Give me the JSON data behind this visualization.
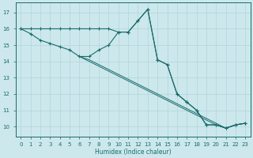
{
  "xlabel": "Humidex (Indice chaleur)",
  "xlim": [
    -0.5,
    23.5
  ],
  "ylim": [
    9.4,
    17.6
  ],
  "xticks": [
    0,
    1,
    2,
    3,
    4,
    5,
    6,
    7,
    8,
    9,
    10,
    11,
    12,
    13,
    14,
    15,
    16,
    17,
    18,
    19,
    20,
    21,
    22,
    23
  ],
  "yticks": [
    10,
    11,
    12,
    13,
    14,
    15,
    16,
    17
  ],
  "bg_color": "#cce8ec",
  "grid_color": "#b0d4d8",
  "line_color": "#1a6b6b",
  "line_flat": [
    [
      0,
      16.0
    ],
    [
      1,
      16.0
    ],
    [
      2,
      16.0
    ],
    [
      3,
      16.0
    ],
    [
      4,
      16.0
    ],
    [
      5,
      16.0
    ],
    [
      6,
      16.0
    ],
    [
      7,
      16.0
    ],
    [
      8,
      16.0
    ],
    [
      9,
      16.0
    ],
    [
      10,
      15.8
    ],
    [
      11,
      15.8
    ],
    [
      12,
      16.5
    ],
    [
      13,
      17.2
    ],
    [
      14,
      14.1
    ],
    [
      15,
      13.8
    ],
    [
      16,
      12.0
    ],
    [
      17,
      11.5
    ],
    [
      18,
      11.0
    ],
    [
      19,
      10.1
    ],
    [
      20,
      10.1
    ],
    [
      21,
      9.9
    ],
    [
      22,
      10.1
    ],
    [
      23,
      10.2
    ]
  ],
  "line_wavy": [
    [
      0,
      16.0
    ],
    [
      1,
      15.7
    ],
    [
      2,
      15.3
    ],
    [
      3,
      15.1
    ],
    [
      4,
      14.9
    ],
    [
      5,
      14.7
    ],
    [
      6,
      14.3
    ],
    [
      7,
      14.3
    ],
    [
      8,
      14.7
    ],
    [
      9,
      15.0
    ],
    [
      10,
      15.8
    ],
    [
      11,
      15.8
    ],
    [
      12,
      16.5
    ],
    [
      13,
      17.2
    ],
    [
      14,
      14.1
    ],
    [
      15,
      13.8
    ],
    [
      16,
      12.0
    ],
    [
      17,
      11.5
    ],
    [
      18,
      11.0
    ],
    [
      19,
      10.1
    ],
    [
      20,
      10.1
    ],
    [
      21,
      9.9
    ],
    [
      22,
      10.1
    ],
    [
      23,
      10.2
    ]
  ],
  "line_diag1": [
    [
      6,
      14.3
    ],
    [
      7,
      14.1
    ],
    [
      8,
      13.8
    ],
    [
      9,
      13.5
    ],
    [
      10,
      13.2
    ],
    [
      11,
      12.9
    ],
    [
      12,
      12.6
    ],
    [
      13,
      12.3
    ],
    [
      14,
      12.0
    ],
    [
      15,
      11.7
    ],
    [
      16,
      11.4
    ],
    [
      17,
      11.1
    ],
    [
      18,
      10.8
    ],
    [
      19,
      10.5
    ],
    [
      20,
      10.2
    ],
    [
      21,
      9.9
    ],
    [
      22,
      10.1
    ],
    [
      23,
      10.2
    ]
  ],
  "line_diag2": [
    [
      6,
      14.3
    ],
    [
      7,
      14.0
    ],
    [
      8,
      13.7
    ],
    [
      9,
      13.4
    ],
    [
      10,
      13.1
    ],
    [
      11,
      12.8
    ],
    [
      12,
      12.5
    ],
    [
      13,
      12.2
    ],
    [
      14,
      11.9
    ],
    [
      15,
      11.6
    ],
    [
      16,
      11.3
    ],
    [
      17,
      11.0
    ],
    [
      18,
      10.7
    ],
    [
      19,
      10.4
    ],
    [
      20,
      10.1
    ],
    [
      21,
      9.9
    ],
    [
      22,
      10.1
    ],
    [
      23,
      10.2
    ]
  ]
}
